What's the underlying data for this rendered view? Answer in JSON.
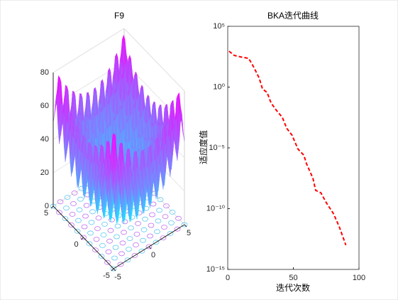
{
  "chart_data": [
    {
      "type": "surface",
      "title": "F9",
      "xlim": [
        -5,
        5
      ],
      "xticks": [
        -5,
        0,
        5
      ],
      "ylim": [
        -5,
        5
      ],
      "yticks": [
        -5,
        0,
        5
      ],
      "zlim": [
        0,
        80
      ],
      "zticks": [
        0,
        20,
        40,
        60,
        80
      ]
    },
    {
      "type": "line",
      "title": "BKA迭代曲线",
      "xlabel": "迭代次数",
      "ylabel": "适应度值",
      "xlim": [
        0,
        100
      ],
      "xticks": [
        0,
        50,
        100
      ],
      "ylim": [
        1e-15,
        100000
      ],
      "log_y": true,
      "yticks": [
        {
          "value": 1e-15,
          "label": "10⁻¹⁵"
        },
        {
          "value": 1e-10,
          "label": "10⁻¹⁰"
        },
        {
          "value": 1e-05,
          "label": "10⁻⁵"
        },
        {
          "value": 1,
          "label": "10⁰"
        },
        {
          "value": 100000,
          "label": "10⁵"
        }
      ],
      "series": [
        {
          "name": "BKA",
          "color": "#ff0000",
          "style": "dashed",
          "x": [
            1,
            5,
            10,
            16,
            20,
            24,
            26.5,
            30,
            33,
            37,
            41.6,
            45,
            49,
            53.5,
            58,
            60,
            64.9,
            67,
            71,
            75,
            80.5,
            85,
            90
          ],
          "values": [
            900,
            400,
            300,
            230,
            40,
            5.4,
            0.7,
            0.36,
            0.05,
            0.0126,
            0.0032,
            0.0004,
            0.00011,
            8e-06,
            2.5e-06,
            5e-07,
            3.2e-08,
            3.2e-09,
            2e-09,
            3.2e-10,
            4e-11,
            3.2e-12,
            1e-13
          ]
        }
      ]
    }
  ]
}
